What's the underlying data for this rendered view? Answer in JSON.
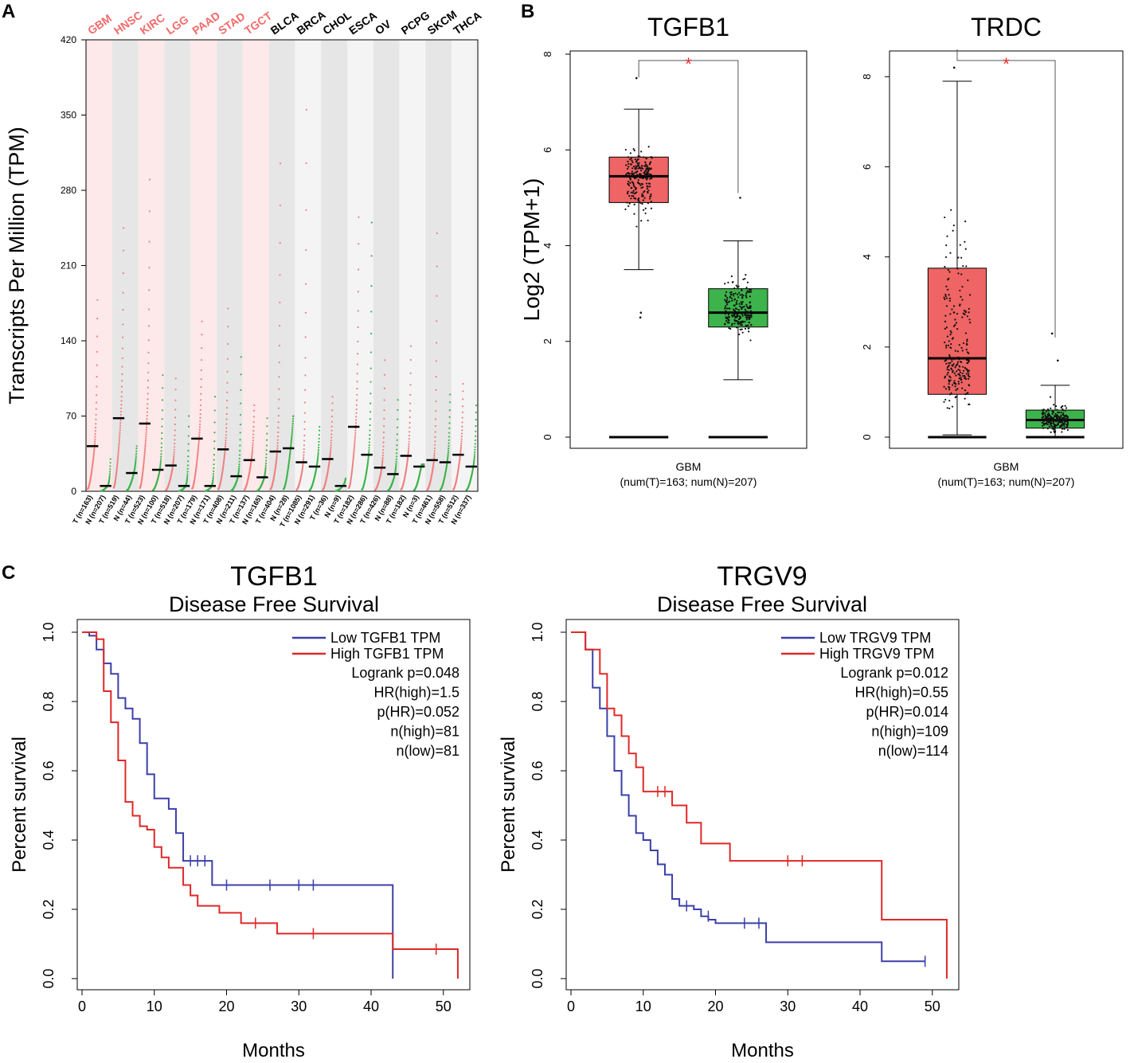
{
  "panels": {
    "a": {
      "letter": "A"
    },
    "b": {
      "letter": "B"
    },
    "c": {
      "letter": "C"
    }
  },
  "chart_data": [
    {
      "id": "A",
      "type": "scatter",
      "title": "",
      "ylabel": "Transcripts Per Million (TPM)",
      "ylim": [
        0,
        420
      ],
      "yticks": [
        0,
        70,
        140,
        210,
        280,
        350,
        420
      ],
      "cancers": [
        {
          "name": "GBM",
          "highlight": true
        },
        {
          "name": "HNSC",
          "highlight": true
        },
        {
          "name": "KIRC",
          "highlight": true
        },
        {
          "name": "LGG",
          "highlight": true
        },
        {
          "name": "PAAD",
          "highlight": true
        },
        {
          "name": "STAD",
          "highlight": true
        },
        {
          "name": "TGCT",
          "highlight": true
        },
        {
          "name": "BLCA",
          "highlight": false
        },
        {
          "name": "BRCA",
          "highlight": false
        },
        {
          "name": "CHOL",
          "highlight": false
        },
        {
          "name": "ESCA",
          "highlight": false
        },
        {
          "name": "OV",
          "highlight": false
        },
        {
          "name": "PCPG",
          "highlight": false
        },
        {
          "name": "SKCM",
          "highlight": false
        },
        {
          "name": "THCA",
          "highlight": false
        }
      ],
      "groups": [
        {
          "label": "T (n=163)",
          "type": "T",
          "median": 42,
          "max": 178
        },
        {
          "label": "N (n=207)",
          "type": "N",
          "median": 5,
          "max": 30
        },
        {
          "label": "T (n=519)",
          "type": "T",
          "median": 68,
          "max": 245
        },
        {
          "label": "N (n=44)",
          "type": "N",
          "median": 17,
          "max": 42
        },
        {
          "label": "T (n=523)",
          "type": "T",
          "median": 63,
          "max": 290
        },
        {
          "label": "N (n=100)",
          "type": "N",
          "median": 20,
          "max": 108
        },
        {
          "label": "T (n=518)",
          "type": "T",
          "median": 24,
          "max": 105
        },
        {
          "label": "N (n=207)",
          "type": "N",
          "median": 5,
          "max": 70
        },
        {
          "label": "T (n=179)",
          "type": "T",
          "median": 49,
          "max": 158
        },
        {
          "label": "N (n=171)",
          "type": "N",
          "median": 5,
          "max": 88
        },
        {
          "label": "T (n=408)",
          "type": "T",
          "median": 39,
          "max": 170
        },
        {
          "label": "N (n=211)",
          "type": "N",
          "median": 14,
          "max": 125
        },
        {
          "label": "T (n=137)",
          "type": "T",
          "median": 29,
          "max": 80
        },
        {
          "label": "N (n=165)",
          "type": "N",
          "median": 13,
          "max": 68
        },
        {
          "label": "T (n=404)",
          "type": "T",
          "median": 37,
          "max": 305
        },
        {
          "label": "N (n=28)",
          "type": "N",
          "median": 40,
          "max": 70
        },
        {
          "label": "T (n=1085)",
          "type": "T",
          "median": 27,
          "max": 355
        },
        {
          "label": "N (n=291)",
          "type": "N",
          "median": 23,
          "max": 60
        },
        {
          "label": "T (n=36)",
          "type": "T",
          "median": 30,
          "max": 88
        },
        {
          "label": "N (n=9)",
          "type": "N",
          "median": 5,
          "max": 12
        },
        {
          "label": "T (n=182)",
          "type": "T",
          "median": 60,
          "max": 255
        },
        {
          "label": "N (n=286)",
          "type": "N",
          "median": 34,
          "max": 250
        },
        {
          "label": "T (n=426)",
          "type": "T",
          "median": 22,
          "max": 122
        },
        {
          "label": "N (n=88)",
          "type": "N",
          "median": 16,
          "max": 85
        },
        {
          "label": "T (n=182)",
          "type": "T",
          "median": 33,
          "max": 135
        },
        {
          "label": "N (n=3)",
          "type": "N",
          "median": 23,
          "max": 25
        },
        {
          "label": "T (n=461)",
          "type": "T",
          "median": 29,
          "max": 240
        },
        {
          "label": "N (n=558)",
          "type": "N",
          "median": 27,
          "max": 90
        },
        {
          "label": "T (n=512)",
          "type": "T",
          "median": 34,
          "max": 100
        },
        {
          "label": "N (n=337)",
          "type": "N",
          "median": 23,
          "max": 80
        }
      ],
      "colors": {
        "tumor": "#f08080",
        "normal": "#3cb44b",
        "highlight_text": "#f26b6b"
      }
    },
    {
      "id": "B1",
      "type": "box",
      "title": "TGFB1",
      "ylabel": "Log2 (TPM+1)",
      "ylim": [
        0,
        8
      ],
      "yticks": [
        0,
        2,
        4,
        6,
        8
      ],
      "xlabel": "GBM",
      "xsub": "(num(T)=163; num(N)=207)",
      "significance": "*",
      "boxes": [
        {
          "group": "T",
          "whisker_low": 3.5,
          "q1": 4.9,
          "median": 5.45,
          "q3": 5.85,
          "whisker_high": 6.85,
          "color": "#ef6464",
          "dots": [
            7.5,
            2.6,
            2.5
          ]
        },
        {
          "group": "N",
          "whisker_low": 1.2,
          "q1": 2.3,
          "median": 2.6,
          "q3": 3.1,
          "whisker_high": 4.1,
          "color": "#3cb44b",
          "dots": [
            5.0
          ]
        }
      ]
    },
    {
      "id": "B2",
      "type": "box",
      "title": "TRDC",
      "ylabel": "",
      "ylim": [
        0,
        8.5
      ],
      "yticks": [
        0,
        2,
        4,
        6,
        8
      ],
      "xlabel": "GBM",
      "xsub": "(num(T)=163; num(N)=207)",
      "significance": "*",
      "boxes": [
        {
          "group": "T",
          "whisker_low": 0.05,
          "q1": 0.95,
          "median": 1.75,
          "q3": 3.75,
          "whisker_high": 7.9,
          "color": "#ef6464",
          "dots": [
            8.2
          ]
        },
        {
          "group": "N",
          "whisker_low": 0.0,
          "q1": 0.2,
          "median": 0.38,
          "q3": 0.6,
          "whisker_high": 1.15,
          "color": "#3cb44b",
          "dots": [
            2.3,
            1.7
          ]
        }
      ]
    },
    {
      "id": "C1",
      "type": "line",
      "title": "TGFB1",
      "subtitle": "Disease Free Survival",
      "xlabel": "Months",
      "ylabel": "Percent survival",
      "xlim": [
        0,
        53
      ],
      "ylim": [
        0,
        1
      ],
      "xticks": [
        0,
        10,
        20,
        30,
        40,
        50
      ],
      "yticks": [
        "0.0",
        "0.2",
        "0.4",
        "0.6",
        "0.8",
        "1.0"
      ],
      "legend": [
        "Low TGFB1 TPM",
        "High TGFB1 TPM"
      ],
      "stats": [
        "Logrank p=0.048",
        "HR(high)=1.5",
        "p(HR)=0.052",
        "n(high)=81",
        "n(low)=81"
      ],
      "series": [
        {
          "name": "Low TGFB1 TPM",
          "color": "#3b3fa8",
          "steps": [
            [
              0,
              1.0
            ],
            [
              1,
              0.99
            ],
            [
              2,
              0.95
            ],
            [
              3,
              0.91
            ],
            [
              4,
              0.88
            ],
            [
              5,
              0.81
            ],
            [
              6,
              0.78
            ],
            [
              7,
              0.75
            ],
            [
              8,
              0.68
            ],
            [
              9,
              0.59
            ],
            [
              10,
              0.52
            ],
            [
              12,
              0.49
            ],
            [
              13,
              0.42
            ],
            [
              14,
              0.34
            ],
            [
              18,
              0.27
            ],
            [
              43,
              0.0
            ]
          ],
          "censors": [
            [
              15,
              0.34
            ],
            [
              16,
              0.34
            ],
            [
              17,
              0.34
            ],
            [
              20,
              0.27
            ],
            [
              26,
              0.27
            ],
            [
              30,
              0.27
            ],
            [
              32,
              0.27
            ]
          ]
        },
        {
          "name": "High TGFB1 TPM",
          "color": "#e02828",
          "steps": [
            [
              0,
              1.0
            ],
            [
              2,
              0.98
            ],
            [
              3,
              0.83
            ],
            [
              4,
              0.74
            ],
            [
              5,
              0.63
            ],
            [
              6,
              0.51
            ],
            [
              7,
              0.47
            ],
            [
              8,
              0.44
            ],
            [
              9,
              0.43
            ],
            [
              10,
              0.38
            ],
            [
              11,
              0.35
            ],
            [
              12,
              0.32
            ],
            [
              14,
              0.27
            ],
            [
              15,
              0.24
            ],
            [
              16,
              0.21
            ],
            [
              19,
              0.19
            ],
            [
              22,
              0.16
            ],
            [
              27,
              0.13
            ],
            [
              43,
              0.085
            ],
            [
              52,
              0.0
            ]
          ],
          "censors": [
            [
              24,
              0.16
            ],
            [
              32,
              0.13
            ],
            [
              49,
              0.085
            ]
          ]
        }
      ]
    },
    {
      "id": "C2",
      "type": "line",
      "title": "TRGV9",
      "subtitle": "Disease Free Survival",
      "xlabel": "Months",
      "ylabel": "Percent survival",
      "xlim": [
        0,
        53
      ],
      "ylim": [
        0,
        1
      ],
      "xticks": [
        0,
        10,
        20,
        30,
        40,
        50
      ],
      "yticks": [
        "0.0",
        "0.2",
        "0.4",
        "0.6",
        "0.8",
        "1.0"
      ],
      "legend": [
        "Low TRGV9 TPM",
        "High TRGV9 TPM"
      ],
      "stats": [
        "Logrank p=0.012",
        "HR(high)=0.55",
        "p(HR)=0.014",
        "n(high)=109",
        "n(low)=114"
      ],
      "series": [
        {
          "name": "Low TRGV9 TPM",
          "color": "#3b3fa8",
          "steps": [
            [
              0,
              1.0
            ],
            [
              2,
              0.95
            ],
            [
              3,
              0.84
            ],
            [
              4,
              0.78
            ],
            [
              5,
              0.7
            ],
            [
              6,
              0.6
            ],
            [
              7,
              0.53
            ],
            [
              8,
              0.47
            ],
            [
              9,
              0.42
            ],
            [
              10,
              0.4
            ],
            [
              11,
              0.37
            ],
            [
              12,
              0.33
            ],
            [
              13,
              0.3
            ],
            [
              14,
              0.23
            ],
            [
              15,
              0.21
            ],
            [
              17,
              0.2
            ],
            [
              18,
              0.18
            ],
            [
              19,
              0.17
            ],
            [
              20,
              0.16
            ],
            [
              27,
              0.105
            ],
            [
              43,
              0.05
            ],
            [
              49,
              0.05
            ]
          ],
          "censors": [
            [
              16,
              0.21
            ],
            [
              19,
              0.18
            ],
            [
              24,
              0.16
            ],
            [
              26,
              0.16
            ],
            [
              49,
              0.05
            ]
          ]
        },
        {
          "name": "High TRGV9 TPM",
          "color": "#e02828",
          "steps": [
            [
              0,
              1.0
            ],
            [
              2,
              0.95
            ],
            [
              4,
              0.88
            ],
            [
              5,
              0.78
            ],
            [
              6,
              0.76
            ],
            [
              7,
              0.7
            ],
            [
              8,
              0.65
            ],
            [
              9,
              0.61
            ],
            [
              10,
              0.54
            ],
            [
              14,
              0.5
            ],
            [
              16,
              0.45
            ],
            [
              18,
              0.39
            ],
            [
              22,
              0.34
            ],
            [
              43,
              0.17
            ],
            [
              52,
              0.0
            ]
          ],
          "censors": [
            [
              12,
              0.54
            ],
            [
              13,
              0.54
            ],
            [
              30,
              0.34
            ],
            [
              32,
              0.34
            ]
          ]
        }
      ]
    }
  ]
}
